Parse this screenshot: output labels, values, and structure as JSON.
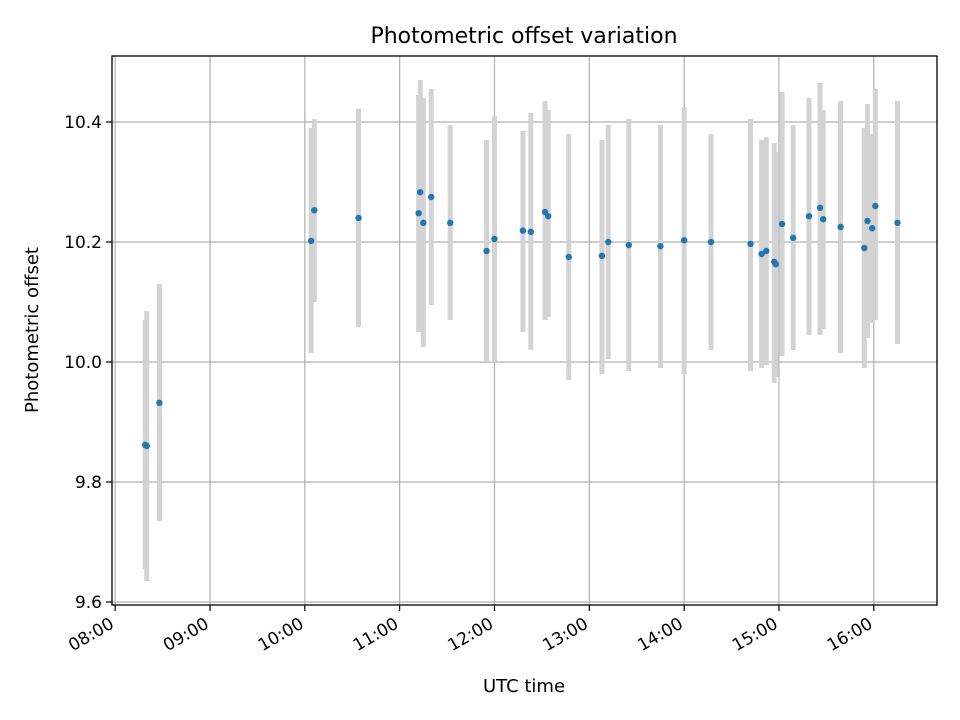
{
  "chart_data": {
    "type": "scatter",
    "title": "Photometric offset variation",
    "xlabel": "UTC time",
    "ylabel": "Photometric offset",
    "x_unit": "UTC time of day",
    "xlim": [
      "07:58",
      "16:40"
    ],
    "ylim": [
      9.595,
      10.51
    ],
    "x_ticks": [
      "08:00",
      "09:00",
      "10:00",
      "11:00",
      "12:00",
      "13:00",
      "14:00",
      "15:00",
      "16:00"
    ],
    "y_ticks": [
      9.6,
      9.8,
      10.0,
      10.2,
      10.4
    ],
    "y_tick_labels": [
      "9.6",
      "9.8",
      "10.0",
      "10.2",
      "10.4"
    ],
    "grid": true,
    "legend": "none",
    "colors": {
      "points": "#1f77b4",
      "error_bars": "#d3d3d3"
    },
    "points": [
      {
        "x": "08:19",
        "y": 9.862,
        "lo": 9.655,
        "hi": 10.07
      },
      {
        "x": "08:20",
        "y": 9.86,
        "lo": 9.635,
        "hi": 10.085
      },
      {
        "x": "08:28",
        "y": 9.932,
        "lo": 9.735,
        "hi": 10.13
      },
      {
        "x": "10:04",
        "y": 10.202,
        "lo": 10.015,
        "hi": 10.39
      },
      {
        "x": "10:06",
        "y": 10.253,
        "lo": 10.1,
        "hi": 10.405
      },
      {
        "x": "10:34",
        "y": 10.24,
        "lo": 10.058,
        "hi": 10.422
      },
      {
        "x": "11:12",
        "y": 10.248,
        "lo": 10.05,
        "hi": 10.445
      },
      {
        "x": "11:13",
        "y": 10.283,
        "lo": 10.095,
        "hi": 10.47
      },
      {
        "x": "11:15",
        "y": 10.232,
        "lo": 10.025,
        "hi": 10.44
      },
      {
        "x": "11:20",
        "y": 10.275,
        "lo": 10.095,
        "hi": 10.455
      },
      {
        "x": "11:32",
        "y": 10.232,
        "lo": 10.07,
        "hi": 10.395
      },
      {
        "x": "11:55",
        "y": 10.185,
        "lo": 10.0,
        "hi": 10.37
      },
      {
        "x": "12:00",
        "y": 10.205,
        "lo": 10.0,
        "hi": 10.41
      },
      {
        "x": "12:18",
        "y": 10.219,
        "lo": 10.05,
        "hi": 10.385
      },
      {
        "x": "12:23",
        "y": 10.217,
        "lo": 10.02,
        "hi": 10.415
      },
      {
        "x": "12:32",
        "y": 10.25,
        "lo": 10.07,
        "hi": 10.435
      },
      {
        "x": "12:34",
        "y": 10.243,
        "lo": 10.075,
        "hi": 10.42
      },
      {
        "x": "12:47",
        "y": 10.175,
        "lo": 9.97,
        "hi": 10.38
      },
      {
        "x": "13:08",
        "y": 10.177,
        "lo": 9.98,
        "hi": 10.37
      },
      {
        "x": "13:12",
        "y": 10.2,
        "lo": 10.005,
        "hi": 10.395
      },
      {
        "x": "13:25",
        "y": 10.195,
        "lo": 9.985,
        "hi": 10.405
      },
      {
        "x": "13:45",
        "y": 10.193,
        "lo": 9.99,
        "hi": 10.395
      },
      {
        "x": "14:00",
        "y": 10.203,
        "lo": 9.98,
        "hi": 10.425
      },
      {
        "x": "14:17",
        "y": 10.2,
        "lo": 10.02,
        "hi": 10.38
      },
      {
        "x": "14:42",
        "y": 10.197,
        "lo": 9.985,
        "hi": 10.405
      },
      {
        "x": "14:49",
        "y": 10.18,
        "lo": 9.99,
        "hi": 10.37
      },
      {
        "x": "14:52",
        "y": 10.185,
        "lo": 9.995,
        "hi": 10.375
      },
      {
        "x": "14:57",
        "y": 10.167,
        "lo": 9.965,
        "hi": 10.365
      },
      {
        "x": "14:58",
        "y": 10.163,
        "lo": 9.975,
        "hi": 10.35
      },
      {
        "x": "15:02",
        "y": 10.23,
        "lo": 10.01,
        "hi": 10.45
      },
      {
        "x": "15:09",
        "y": 10.207,
        "lo": 10.02,
        "hi": 10.395
      },
      {
        "x": "15:19",
        "y": 10.243,
        "lo": 10.045,
        "hi": 10.44
      },
      {
        "x": "15:26",
        "y": 10.257,
        "lo": 10.045,
        "hi": 10.465
      },
      {
        "x": "15:28",
        "y": 10.238,
        "lo": 10.055,
        "hi": 10.42
      },
      {
        "x": "15:39",
        "y": 10.225,
        "lo": 10.015,
        "hi": 10.435
      },
      {
        "x": "15:54",
        "y": 10.19,
        "lo": 9.99,
        "hi": 10.39
      },
      {
        "x": "15:56",
        "y": 10.235,
        "lo": 10.04,
        "hi": 10.43
      },
      {
        "x": "15:59",
        "y": 10.223,
        "lo": 10.065,
        "hi": 10.38
      },
      {
        "x": "16:01",
        "y": 10.26,
        "lo": 10.07,
        "hi": 10.455
      },
      {
        "x": "16:15",
        "y": 10.232,
        "lo": 10.03,
        "hi": 10.435
      }
    ]
  }
}
